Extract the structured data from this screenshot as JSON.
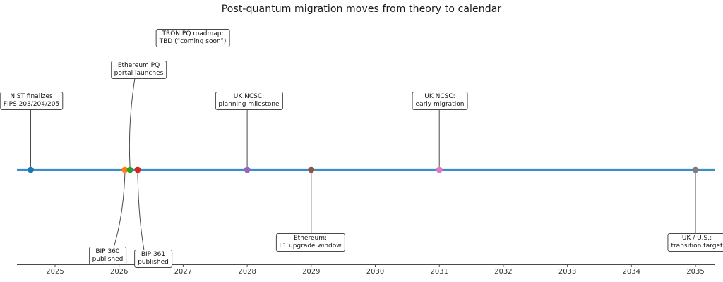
{
  "title": "Post-quantum migration moves from theory to calendar",
  "chart_data": {
    "type": "timeline",
    "title": "Post-quantum migration moves from theory to calendar",
    "xlabel": "",
    "ylabel": "",
    "grid": false,
    "legend": "none",
    "axis": {
      "xlim": [
        2024.4,
        2035.3
      ],
      "ticks": [
        "2025",
        "2026",
        "2027",
        "2028",
        "2029",
        "2030",
        "2031",
        "2032",
        "2033",
        "2034",
        "2035"
      ],
      "tick_years": [
        2025,
        2026,
        2027,
        2028,
        2029,
        2030,
        2031,
        2032,
        2033,
        2034,
        2035
      ]
    },
    "colors": {
      "timeline_line": "#3c8dc5",
      "leader_line": "#4a4a4a",
      "axis_line": "#4a4a4a"
    },
    "events": [
      {
        "name": "nist-fips",
        "label_lines": [
          "NIST finalizes",
          "FIPS 203/204/205"
        ],
        "year": 2024.62,
        "side": "above",
        "color": "#1f77b4"
      },
      {
        "name": "bip-360",
        "label_lines": [
          "BIP 360",
          "published"
        ],
        "year": 2026.09,
        "side": "below",
        "color": "#ff7f0e"
      },
      {
        "name": "eth-portal",
        "label_lines": [
          "Ethereum PQ",
          "portal launches"
        ],
        "year": 2026.17,
        "side": "above",
        "color": "#2ca02c"
      },
      {
        "name": "bip-361",
        "label_lines": [
          "BIP 361",
          "published"
        ],
        "year": 2026.29,
        "side": "below",
        "color": "#d62728"
      },
      {
        "name": "uk-planning",
        "label_lines": [
          "UK NCSC:",
          "planning milestone"
        ],
        "year": 2028,
        "side": "above",
        "color": "#9467bd"
      },
      {
        "name": "eth-l1",
        "label_lines": [
          "Ethereum:",
          "L1 upgrade window"
        ],
        "year": 2029,
        "side": "below",
        "color": "#8c564b"
      },
      {
        "name": "uk-early",
        "label_lines": [
          "UK NCSC:",
          "early migration"
        ],
        "year": 2031,
        "side": "above",
        "color": "#e377c2"
      },
      {
        "name": "ukus-target",
        "label_lines": [
          "UK / U.S.:",
          "transition target"
        ],
        "year": 2035,
        "side": "below",
        "color": "#7f7f7f"
      }
    ],
    "floating_labels": [
      {
        "name": "tron-roadmap",
        "label_lines": [
          "TRON PQ roadmap:",
          "TBD (“coming soon”)"
        ]
      }
    ]
  }
}
